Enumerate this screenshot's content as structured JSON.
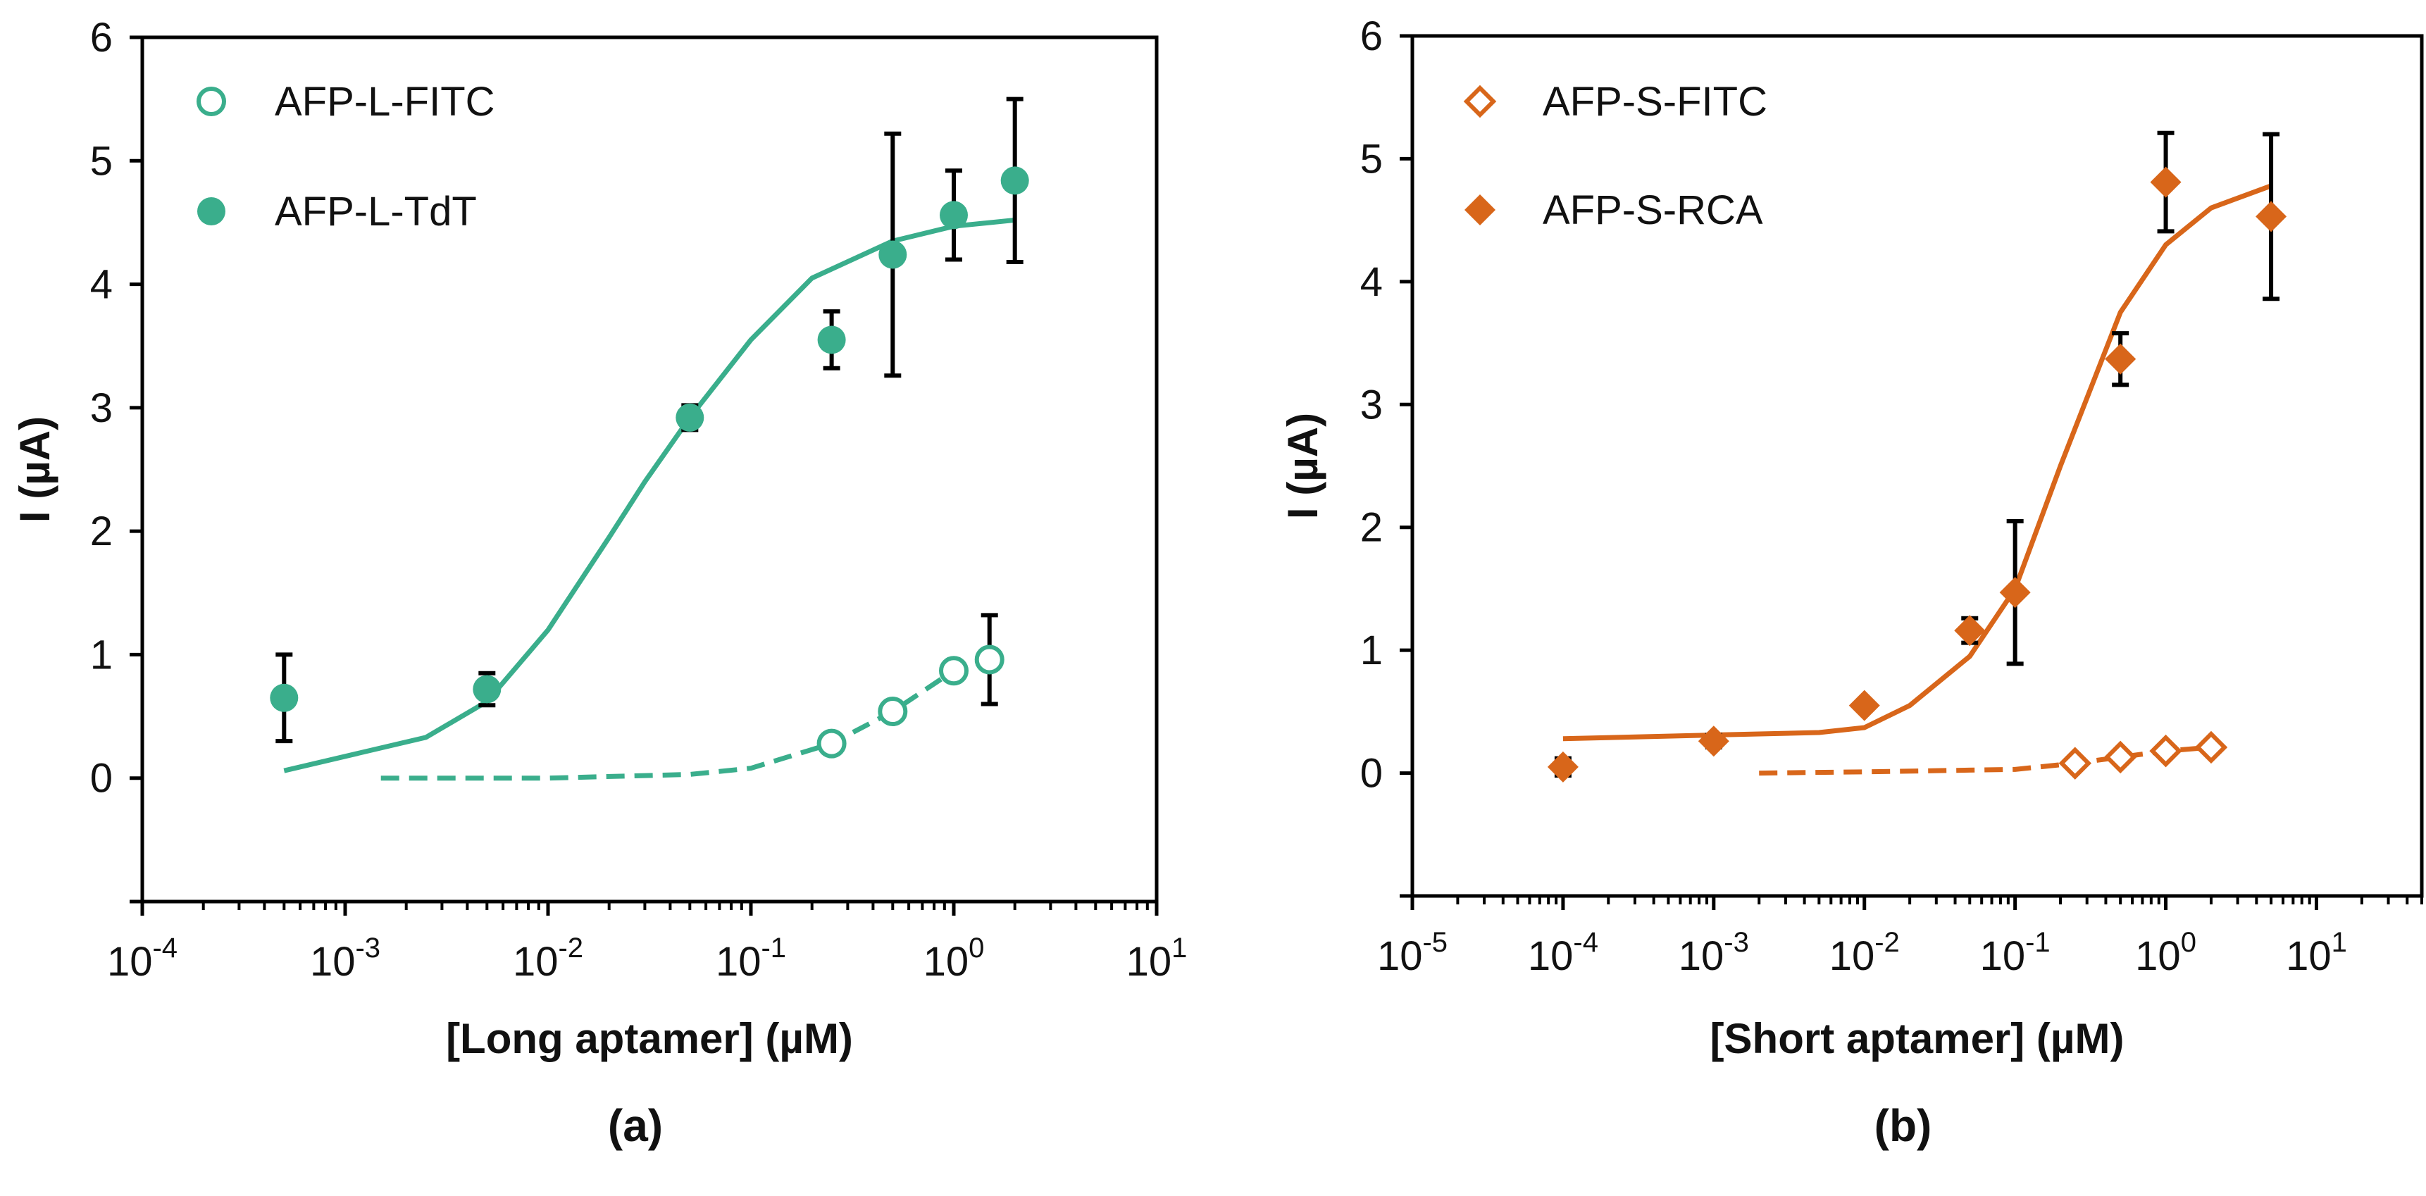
{
  "chart_data": [
    {
      "type": "scatter",
      "panel_label": "(a)",
      "xlabel": "[Long aptamer] (µM)",
      "ylabel": "I (µA)",
      "xscale": "log",
      "xlim": [
        0.0001,
        10
      ],
      "ylim": [
        -1,
        6
      ],
      "xticks": [
        "10^-4",
        "10^-3",
        "10^-2",
        "10^-1",
        "10^0",
        "10^1"
      ],
      "yticks": [
        0,
        1,
        2,
        3,
        4,
        5,
        6
      ],
      "legend_position": "top-left",
      "series": [
        {
          "name": "AFP-L-FITC",
          "marker": "open-circle",
          "color": "#3aae8c",
          "x": [
            0.25,
            0.5,
            1,
            1.5
          ],
          "y": [
            0.28,
            0.54,
            0.87,
            0.96
          ],
          "err": [
            0,
            0,
            0,
            0.36
          ],
          "fit": {
            "style": "dashed",
            "x": [
              0.0015,
              0.01,
              0.05,
              0.1,
              0.25,
              0.5,
              1,
              1.5
            ],
            "y": [
              0,
              0,
              0.03,
              0.08,
              0.28,
              0.54,
              0.87,
              0.96
            ]
          }
        },
        {
          "name": "AFP-L-TdT",
          "marker": "filled-circle",
          "color": "#3aae8c",
          "x": [
            0.0005,
            0.005,
            0.05,
            0.25,
            0.5,
            1,
            2
          ],
          "y": [
            0.65,
            0.72,
            2.92,
            3.55,
            4.24,
            4.56,
            4.84
          ],
          "err": [
            0.35,
            0.13,
            0.1,
            0.23,
            0.98,
            0.36,
            0.66
          ],
          "fit": {
            "style": "solid",
            "x": [
              0.0005,
              0.0025,
              0.005,
              0.01,
              0.02,
              0.03,
              0.05,
              0.1,
              0.2,
              0.5,
              1,
              2
            ],
            "y": [
              0.06,
              0.33,
              0.62,
              1.2,
              1.95,
              2.4,
              2.92,
              3.55,
              4.05,
              4.35,
              4.47,
              4.52
            ]
          }
        }
      ]
    },
    {
      "type": "scatter",
      "panel_label": "(b)",
      "xlabel": "[Short aptamer] (µM)",
      "ylabel": "I (µA)",
      "xscale": "log",
      "xlim": [
        1e-05,
        50
      ],
      "ylim": [
        -1,
        6
      ],
      "xticks": [
        "10^-5",
        "10^-4",
        "10^-3",
        "10^-2",
        "10^-1",
        "10^0",
        "10^1"
      ],
      "yticks": [
        0,
        1,
        2,
        3,
        4,
        5,
        6
      ],
      "legend_position": "top-left",
      "series": [
        {
          "name": "AFP-S-FITC",
          "marker": "open-diamond",
          "color": "#d8661a",
          "x": [
            0.25,
            0.5,
            1,
            2
          ],
          "y": [
            0.08,
            0.13,
            0.18,
            0.21
          ],
          "err": [
            0,
            0,
            0,
            0
          ],
          "fit": {
            "style": "dashed",
            "x": [
              0.002,
              0.01,
              0.1,
              0.25,
              0.5,
              1,
              2
            ],
            "y": [
              0,
              0.01,
              0.03,
              0.08,
              0.13,
              0.18,
              0.21
            ]
          }
        },
        {
          "name": "AFP-S-RCA",
          "marker": "filled-diamond",
          "color": "#d8661a",
          "x": [
            0.0001,
            0.001,
            0.01,
            0.05,
            0.1,
            0.5,
            1,
            5
          ],
          "y": [
            0.05,
            0.26,
            0.55,
            1.16,
            1.47,
            3.37,
            4.81,
            4.53
          ],
          "err": [
            0.07,
            0.05,
            0.03,
            0.1,
            0.58,
            0.21,
            0.4,
            0.67
          ],
          "fit": {
            "style": "solid",
            "x": [
              0.0001,
              0.001,
              0.005,
              0.01,
              0.02,
              0.05,
              0.1,
              0.2,
              0.5,
              1,
              2,
              5
            ],
            "y": [
              0.28,
              0.31,
              0.33,
              0.37,
              0.55,
              0.95,
              1.5,
              2.5,
              3.75,
              4.3,
              4.6,
              4.78
            ]
          }
        }
      ]
    }
  ]
}
